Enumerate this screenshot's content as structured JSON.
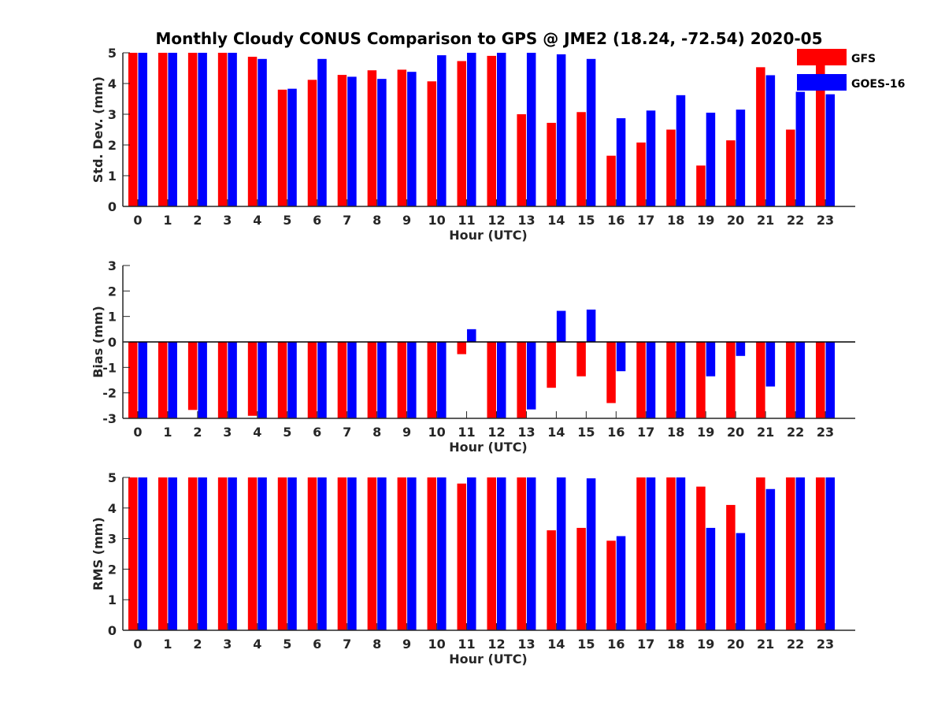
{
  "figure": {
    "title": "Monthly Cloudy CONUS Comparison to GPS @ JME2 (18.24, -72.54) 2020-05"
  },
  "legend": {
    "placement": "top-right",
    "entries": [
      {
        "name": "GFS",
        "color": "#ff0000"
      },
      {
        "name": "GOES-16",
        "color": "#0000ff"
      }
    ]
  },
  "chart_data": [
    {
      "type": "bar",
      "xlabel": "Hour (UTC)",
      "ylabel": "Std. Dev. (mm)",
      "ylim": [
        0,
        5
      ],
      "yticks": [
        0,
        1,
        2,
        3,
        4,
        5
      ],
      "categories": [
        "0",
        "1",
        "2",
        "3",
        "4",
        "5",
        "6",
        "7",
        "8",
        "9",
        "10",
        "11",
        "12",
        "13",
        "14",
        "15",
        "16",
        "17",
        "18",
        "19",
        "20",
        "21",
        "22",
        "23"
      ],
      "series": [
        {
          "name": "GFS",
          "color": "#ff0000",
          "values": [
            5,
            5,
            5,
            5,
            4.87,
            3.8,
            4.12,
            4.28,
            4.43,
            4.45,
            4.07,
            4.73,
            4.9,
            3.0,
            2.72,
            3.07,
            1.65,
            2.08,
            2.5,
            1.33,
            2.15,
            4.53,
            2.5,
            5
          ]
        },
        {
          "name": "GOES-16",
          "color": "#0000ff",
          "values": [
            5,
            5,
            5,
            5,
            4.8,
            3.83,
            4.8,
            4.22,
            4.15,
            4.38,
            4.92,
            5,
            5,
            5,
            4.95,
            4.8,
            2.87,
            3.12,
            3.62,
            3.05,
            3.15,
            4.27,
            3.73,
            3.65
          ]
        }
      ]
    },
    {
      "type": "bar",
      "xlabel": "Hour (UTC)",
      "ylabel": "Bias (mm)",
      "ylim": [
        -3,
        3
      ],
      "yticks": [
        -3,
        -2,
        -1,
        0,
        1,
        2,
        3
      ],
      "categories": [
        "0",
        "1",
        "2",
        "3",
        "4",
        "5",
        "6",
        "7",
        "8",
        "9",
        "10",
        "11",
        "12",
        "13",
        "14",
        "15",
        "16",
        "17",
        "18",
        "19",
        "20",
        "21",
        "22",
        "23"
      ],
      "series": [
        {
          "name": "GFS",
          "color": "#ff0000",
          "values": [
            -3,
            -3,
            -2.67,
            -3,
            -2.9,
            -3,
            -3,
            -3,
            -3,
            -3,
            -3,
            -0.48,
            -3,
            -3,
            -1.8,
            -1.35,
            -2.4,
            -3,
            -3,
            -3,
            -3,
            -3,
            -3,
            -3
          ]
        },
        {
          "name": "GOES-16",
          "color": "#0000ff",
          "values": [
            -3,
            -3,
            -3,
            -3,
            -3,
            -3,
            -3,
            -3,
            -3,
            -3,
            -3,
            0.5,
            -3,
            -2.65,
            1.22,
            1.27,
            -1.15,
            -3,
            -3,
            -1.35,
            -0.55,
            -1.75,
            -3,
            -3
          ]
        }
      ]
    },
    {
      "type": "bar",
      "xlabel": "Hour (UTC)",
      "ylabel": "RMS (mm)",
      "ylim": [
        0,
        5
      ],
      "yticks": [
        0,
        1,
        2,
        3,
        4,
        5
      ],
      "categories": [
        "0",
        "1",
        "2",
        "3",
        "4",
        "5",
        "6",
        "7",
        "8",
        "9",
        "10",
        "11",
        "12",
        "13",
        "14",
        "15",
        "16",
        "17",
        "18",
        "19",
        "20",
        "21",
        "22",
        "23"
      ],
      "series": [
        {
          "name": "GFS",
          "color": "#ff0000",
          "values": [
            5,
            5,
            5,
            5,
            5,
            5,
            5,
            5,
            5,
            5,
            5,
            4.8,
            5,
            5,
            3.27,
            3.35,
            2.93,
            5,
            5,
            4.7,
            4.1,
            5,
            5,
            5
          ]
        },
        {
          "name": "GOES-16",
          "color": "#0000ff",
          "values": [
            5,
            5,
            5,
            5,
            5,
            5,
            5,
            5,
            5,
            5,
            5,
            5,
            5,
            5,
            5,
            4.97,
            3.08,
            5,
            5,
            3.35,
            3.18,
            4.62,
            5,
            5
          ]
        }
      ]
    }
  ]
}
